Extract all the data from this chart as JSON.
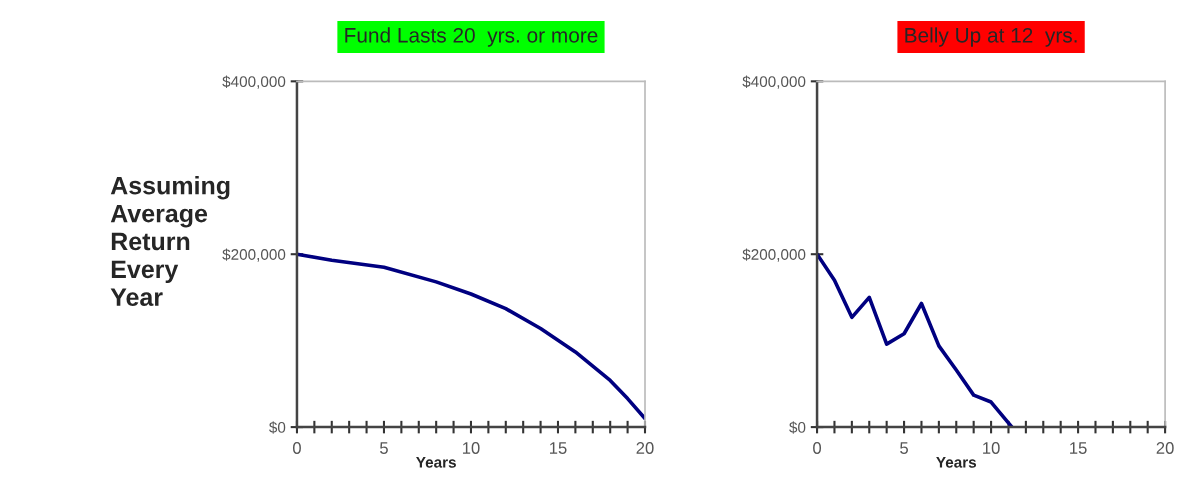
{
  "chart_data": [
    {
      "type": "line",
      "title": "Fund Lasts 20  yrs. or more",
      "xlabel": "Years",
      "annotations": [
        "Assuming\nAverage\nReturn\nEvery\nYear"
      ],
      "series": [
        {
          "color": "#000080",
          "x": [
            0,
            2,
            5,
            8,
            10,
            12,
            14,
            16,
            18,
            19,
            20
          ],
          "values": [
            200000,
            193000,
            185000,
            168000,
            154000,
            137000,
            114000,
            87000,
            54000,
            33000,
            10000
          ]
        }
      ],
      "xlim": [
        0,
        20
      ],
      "ylim": [
        0,
        400000
      ],
      "xticks": [
        0,
        {
          "value": 1,
          "label": null
        },
        {
          "value": 2,
          "label": null
        },
        {
          "value": 3,
          "label": null
        },
        {
          "value": 4,
          "label": null
        },
        5,
        {
          "value": 6,
          "label": null
        },
        {
          "value": 7,
          "label": null
        },
        {
          "value": 8,
          "label": null
        },
        {
          "value": 9,
          "label": null
        },
        10,
        {
          "value": 11,
          "label": null
        },
        {
          "value": 12,
          "label": null
        },
        {
          "value": 13,
          "label": null
        },
        {
          "value": 14,
          "label": null
        },
        15,
        {
          "value": 16,
          "label": null
        },
        {
          "value": 17,
          "label": null
        },
        {
          "value": 18,
          "label": null
        },
        {
          "value": 19,
          "label": null
        },
        20
      ],
      "yticks": [
        {
          "value": 0,
          "label": "$0"
        },
        {
          "value": 200000,
          "label": "$200,000"
        },
        {
          "value": 400000,
          "label": "$400,000"
        }
      ],
      "grid": false,
      "legend": false
    },
    {
      "type": "line",
      "title": "Belly Up at 12  yrs.",
      "xlabel": "Years",
      "series": [
        {
          "color": "#000080",
          "x": [
            0,
            1,
            2,
            3,
            4,
            5,
            6,
            7,
            8,
            9,
            10,
            11.2
          ],
          "values": [
            200000,
            170000,
            127000,
            150000,
            96000,
            108000,
            143000,
            94000,
            66000,
            37000,
            29000,
            0
          ]
        }
      ],
      "xlim": [
        0,
        20
      ],
      "ylim": [
        0,
        400000
      ],
      "xticks": [
        0,
        {
          "value": 1,
          "label": null
        },
        {
          "value": 2,
          "label": null
        },
        {
          "value": 3,
          "label": null
        },
        {
          "value": 4,
          "label": null
        },
        5,
        {
          "value": 6,
          "label": null
        },
        {
          "value": 7,
          "label": null
        },
        {
          "value": 8,
          "label": null
        },
        {
          "value": 9,
          "label": null
        },
        10,
        {
          "value": 11,
          "label": null
        },
        {
          "value": 12,
          "label": null
        },
        {
          "value": 13,
          "label": null
        },
        {
          "value": 14,
          "label": null
        },
        15,
        {
          "value": 16,
          "label": null
        },
        {
          "value": 17,
          "label": null
        },
        {
          "value": 18,
          "label": null
        },
        {
          "value": 19,
          "label": null
        },
        20
      ],
      "yticks": [
        {
          "value": 0,
          "label": "$0"
        },
        {
          "value": 200000,
          "label": "$200,000"
        },
        {
          "value": 400000,
          "label": "$400,000"
        }
      ],
      "grid": false,
      "legend": false
    }
  ]
}
